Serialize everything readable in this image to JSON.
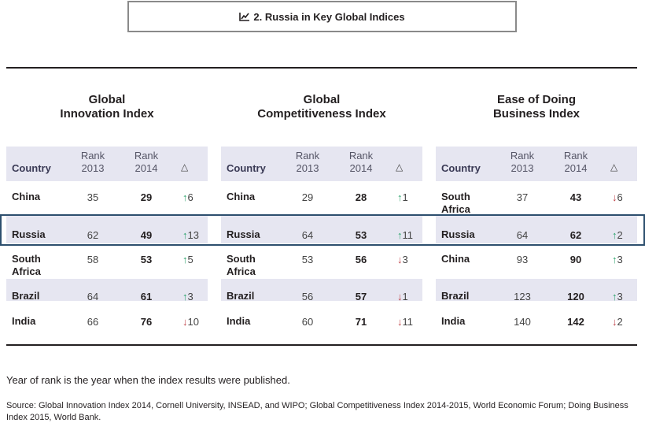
{
  "title": "2. Russia in Key Global Indices",
  "headers": {
    "country": "Country",
    "rank_word": "Rank",
    "year_2013": "2013",
    "year_2014": "2014",
    "delta": "△"
  },
  "chart_data": {
    "type": "table",
    "title": "2. Russia in Key Global Indices",
    "columns": [
      "Country",
      "Rank 2013",
      "Rank 2014",
      "△"
    ],
    "highlight_row": "Russia",
    "panels": [
      {
        "title_lines": [
          "Global",
          "Innovation Index"
        ],
        "rows": [
          {
            "country": [
              "China"
            ],
            "rank_2013": 35,
            "rank_2014": 29,
            "direction": "up",
            "change": 6
          },
          {
            "country": [
              "Russia"
            ],
            "rank_2013": 62,
            "rank_2014": 49,
            "direction": "up",
            "change": 13
          },
          {
            "country": [
              "South",
              "Africa"
            ],
            "rank_2013": 58,
            "rank_2014": 53,
            "direction": "up",
            "change": 5
          },
          {
            "country": [
              "Brazil"
            ],
            "rank_2013": 64,
            "rank_2014": 61,
            "direction": "up",
            "change": 3
          },
          {
            "country": [
              "India"
            ],
            "rank_2013": 66,
            "rank_2014": 76,
            "direction": "down",
            "change": 10
          }
        ]
      },
      {
        "title_lines": [
          "Global",
          "Competitiveness Index"
        ],
        "rows": [
          {
            "country": [
              "China"
            ],
            "rank_2013": 29,
            "rank_2014": 28,
            "direction": "up",
            "change": 1
          },
          {
            "country": [
              "Russia"
            ],
            "rank_2013": 64,
            "rank_2014": 53,
            "direction": "up",
            "change": 11
          },
          {
            "country": [
              "South",
              "Africa"
            ],
            "rank_2013": 53,
            "rank_2014": 56,
            "direction": "down",
            "change": 3
          },
          {
            "country": [
              "Brazil"
            ],
            "rank_2013": 56,
            "rank_2014": 57,
            "direction": "down",
            "change": 1
          },
          {
            "country": [
              "India"
            ],
            "rank_2013": 60,
            "rank_2014": 71,
            "direction": "down",
            "change": 11
          }
        ]
      },
      {
        "title_lines": [
          "Ease of Doing",
          "Business Index"
        ],
        "rows": [
          {
            "country": [
              "South",
              "Africa"
            ],
            "rank_2013": 37,
            "rank_2014": 43,
            "direction": "down",
            "change": 6
          },
          {
            "country": [
              "Russia"
            ],
            "rank_2013": 64,
            "rank_2014": 62,
            "direction": "up",
            "change": 2
          },
          {
            "country": [
              "China"
            ],
            "rank_2013": 93,
            "rank_2014": 90,
            "direction": "up",
            "change": 3
          },
          {
            "country": [
              "Brazil"
            ],
            "rank_2013": 123,
            "rank_2014": 120,
            "direction": "up",
            "change": 3
          },
          {
            "country": [
              "India"
            ],
            "rank_2013": 140,
            "rank_2014": 142,
            "direction": "down",
            "change": 2
          }
        ]
      }
    ]
  },
  "colors": {
    "header_bg": "#e6e6f1",
    "up": "#2aa36b",
    "down": "#c0444a",
    "highlight_border": "#2d4f6e"
  },
  "icons": {
    "title_icon": "line-chart-icon",
    "up": "arrow-up-icon",
    "down": "arrow-down-icon"
  },
  "footer": {
    "note": "Year of rank is the year when the index results were published.",
    "source": "Source: Global Innovation Index 2014, Cornell University, INSEAD, and WIPO; Global Competitiveness Index 2014-2015, World Economic Forum; Doing Business Index 2015, World Bank."
  }
}
